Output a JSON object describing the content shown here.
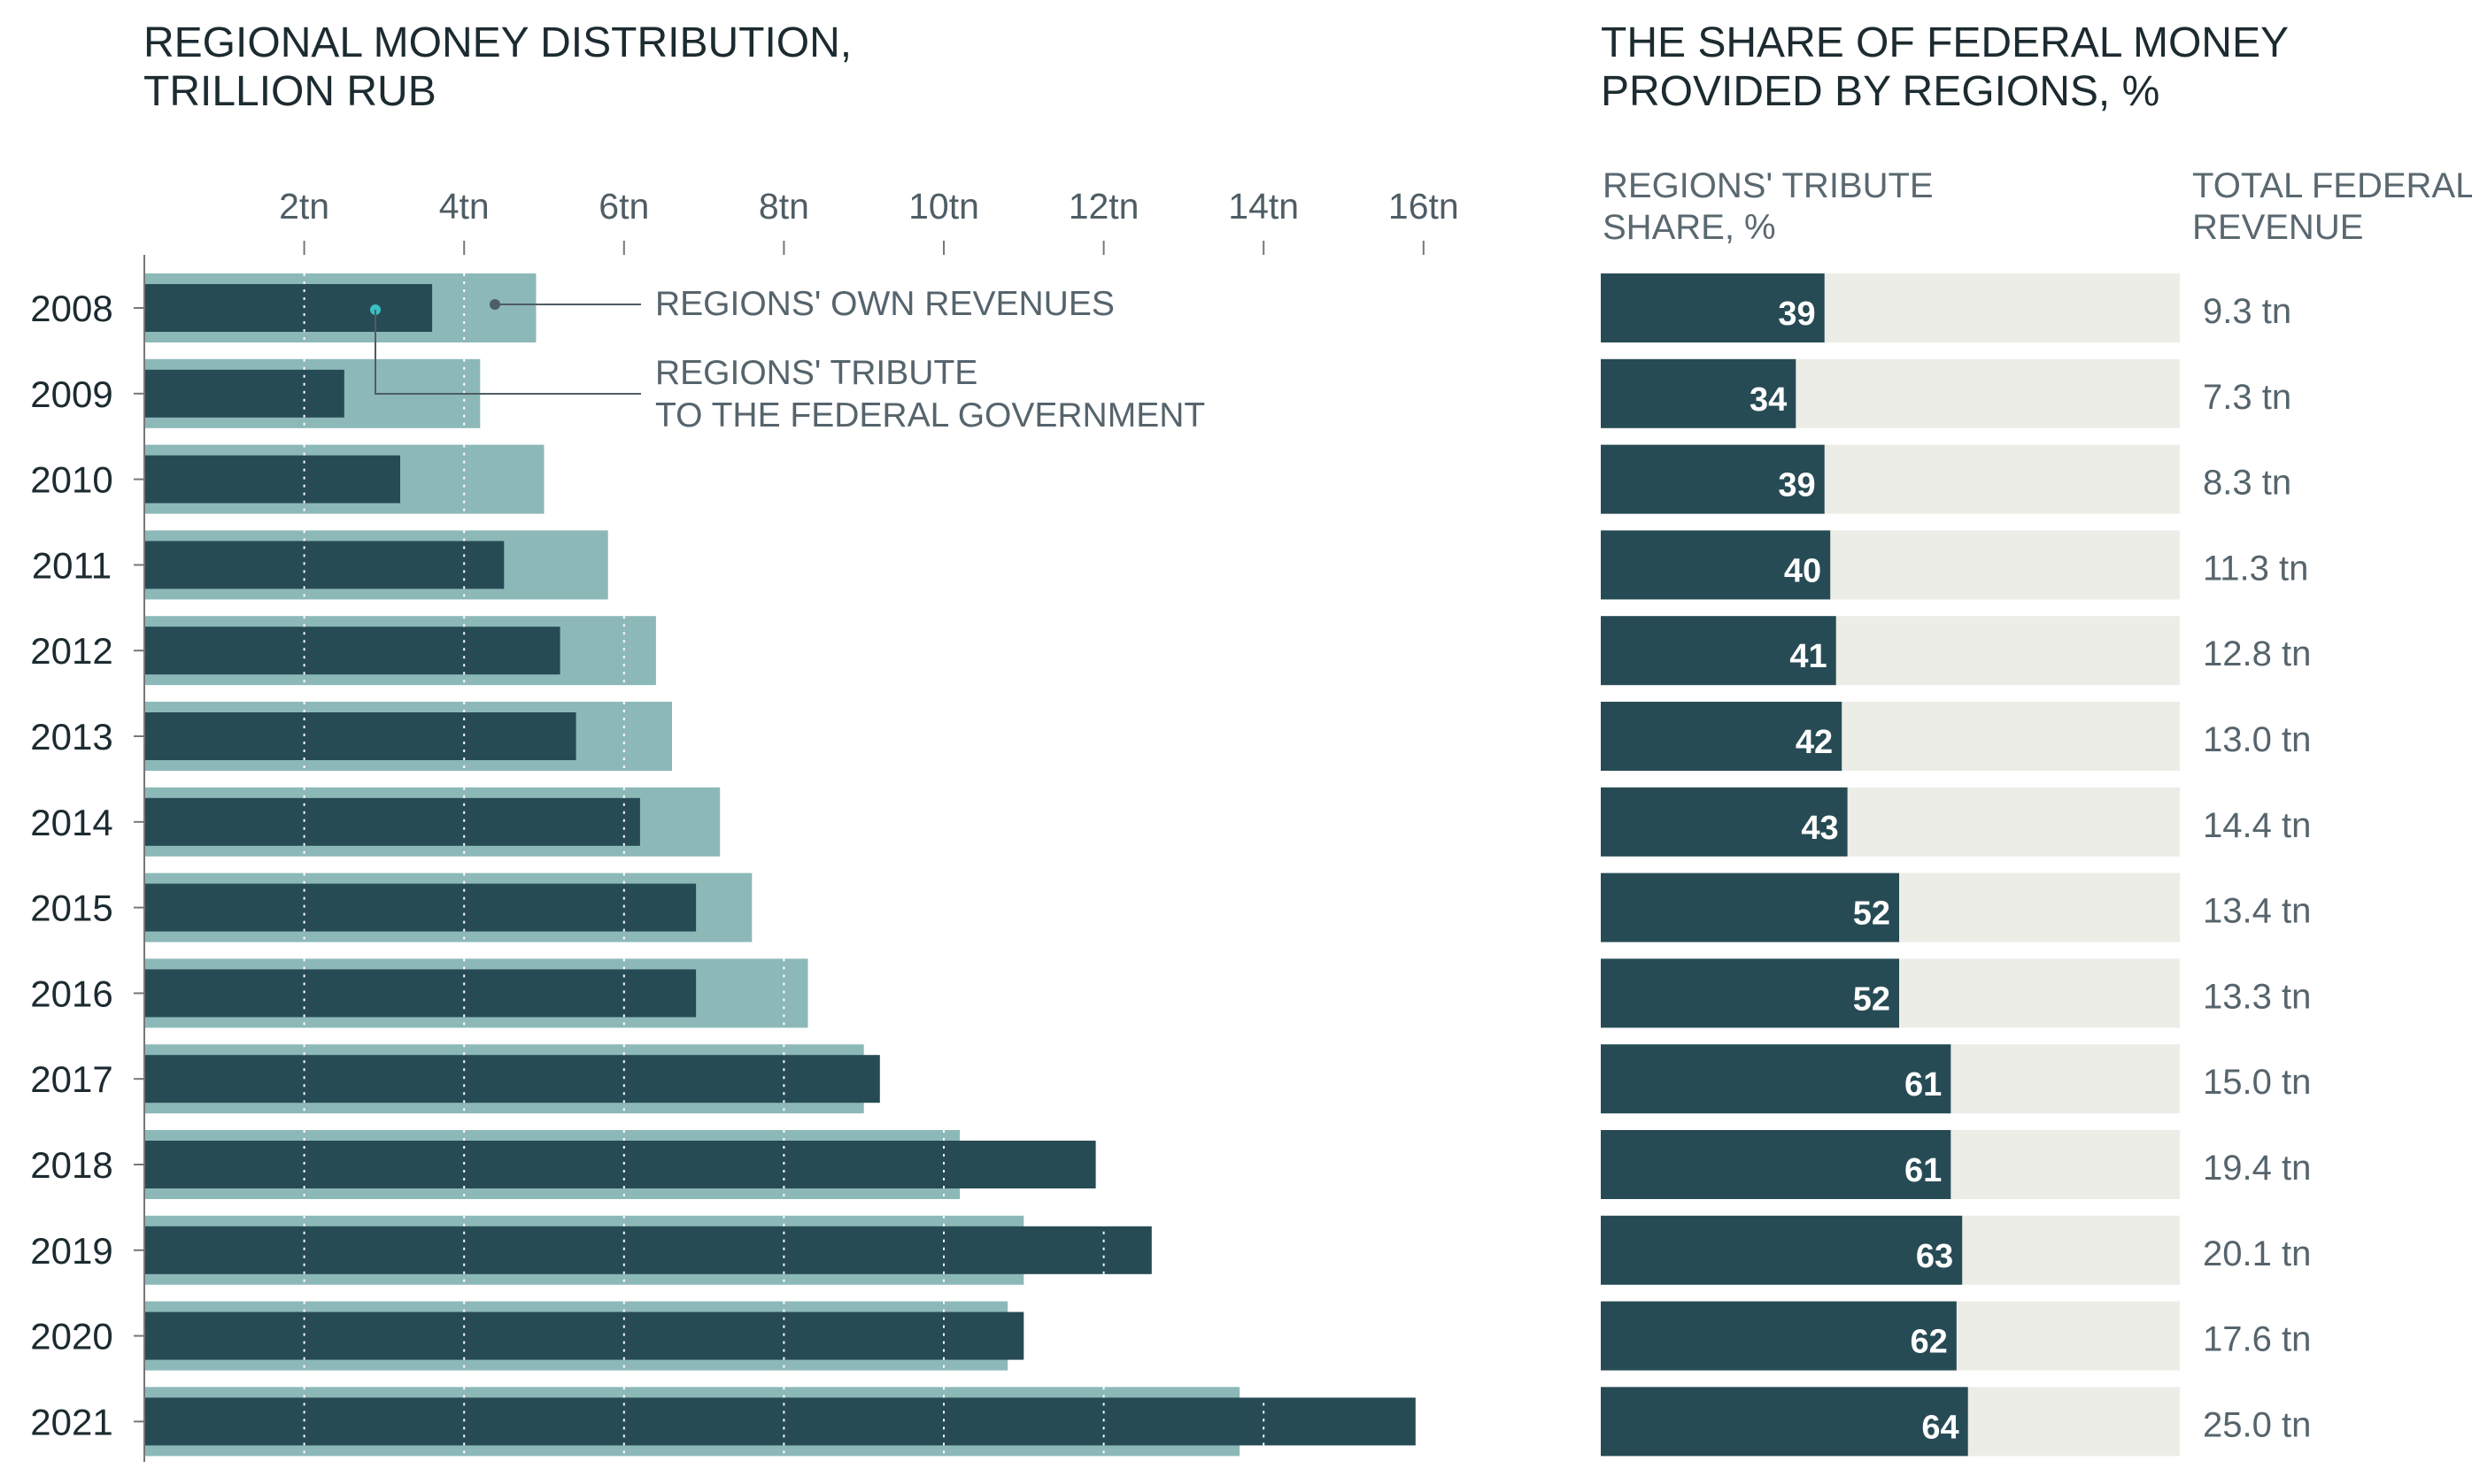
{
  "left_panel": {
    "title_line1": "REGIONAL MONEY DISTRIBUTION,",
    "title_line2": "TRILLION RUB",
    "legend": {
      "own_revenues": "REGIONS' OWN REVENUES",
      "tribute_line1": "REGIONS' TRIBUTE",
      "tribute_line2": "TO THE FEDERAL GOVERNMENT"
    }
  },
  "right_panel": {
    "title_line1": "THE SHARE OF FEDERAL MONEY",
    "title_line2": "PROVIDED BY REGIONS, %",
    "col1_line1": "REGIONS' TRIBUTE",
    "col1_line2": "SHARE, %",
    "col2_line1": "TOTAL FEDERAL",
    "col2_line2": "REVENUE"
  },
  "colors": {
    "own_revenues": "#8cb8b8",
    "tribute": "#274b55",
    "share_background": "#ecede6",
    "axis": "#777777",
    "grid": "#ffffff"
  },
  "chart_data": [
    {
      "type": "bar",
      "orientation": "horizontal",
      "title": "REGIONAL MONEY DISTRIBUTION, TRILLION RUB",
      "categories": [
        "2008",
        "2009",
        "2010",
        "2011",
        "2012",
        "2013",
        "2014",
        "2015",
        "2016",
        "2017",
        "2018",
        "2019",
        "2020",
        "2021"
      ],
      "series": [
        {
          "name": "REGIONS' OWN REVENUES",
          "values": [
            4.9,
            4.2,
            5.0,
            5.8,
            6.4,
            6.6,
            7.2,
            7.6,
            8.3,
            9.0,
            10.2,
            11.0,
            10.8,
            13.7
          ]
        },
        {
          "name": "REGIONS' TRIBUTE TO THE FEDERAL GOVERNMENT",
          "values": [
            3.6,
            2.5,
            3.2,
            4.5,
            5.2,
            5.4,
            6.2,
            6.9,
            6.9,
            9.2,
            11.9,
            12.6,
            11.0,
            15.9
          ]
        }
      ],
      "x_ticks": [
        2,
        4,
        6,
        8,
        10,
        12,
        14,
        16
      ],
      "x_tick_labels": [
        "2tn",
        "4tn",
        "6tn",
        "8tn",
        "10tn",
        "12tn",
        "14tn",
        "16tn"
      ],
      "xlim": [
        0,
        16.5
      ],
      "grid": "vertical dotted lines",
      "legend": "annotations top-right"
    },
    {
      "type": "bar",
      "orientation": "horizontal",
      "title": "THE SHARE OF FEDERAL MONEY PROVIDED BY REGIONS, %",
      "categories": [
        "2008",
        "2009",
        "2010",
        "2011",
        "2012",
        "2013",
        "2014",
        "2015",
        "2016",
        "2017",
        "2018",
        "2019",
        "2020",
        "2021"
      ],
      "series": [
        {
          "name": "REGIONS' TRIBUTE SHARE, %",
          "values": [
            39,
            34,
            39,
            40,
            41,
            42,
            43,
            52,
            52,
            61,
            61,
            63,
            62,
            64
          ],
          "labels": [
            "39",
            "34",
            "39",
            "40",
            "41",
            "42",
            "43",
            "52",
            "52",
            "61",
            "61",
            "63",
            "62",
            "64"
          ]
        }
      ],
      "xlim": [
        0,
        100
      ],
      "total_federal_revenue": [
        "9.3 tn",
        "7.3 tn",
        "8.3 tn",
        "11.3 tn",
        "12.8 tn",
        "13.0 tn",
        "14.4 tn",
        "13.4 tn",
        "13.3 tn",
        "15.0 tn",
        "19.4 tn",
        "20.1 tn",
        "17.6 tn",
        "25.0 tn"
      ]
    }
  ]
}
